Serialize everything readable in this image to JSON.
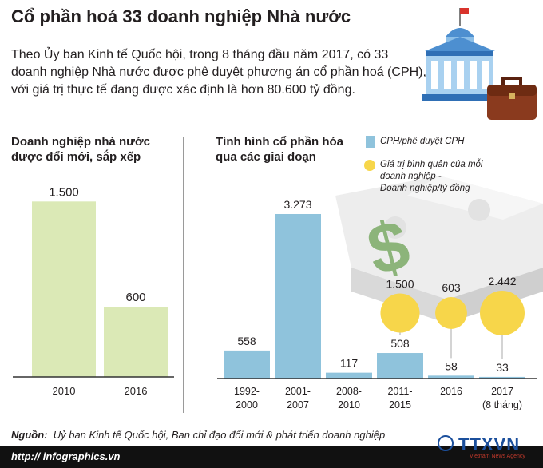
{
  "title": "Cổ phần hoá 33 doanh nghiệp Nhà nước",
  "intro": "Theo Ủy ban Kinh tế Quốc hội, trong 8 tháng đầu năm 2017, có 33 doanh nghiệp Nhà nước được phê duyệt phương án cổ phần hoá (CPH), với giá trị thực tế đang được xác định là hơn 80.600 tỷ đồng.",
  "left_panel": {
    "title_line1": "Doanh nghiệp nhà nước",
    "title_line2": "được đổi mới, sắp xếp"
  },
  "right_panel": {
    "title_line1": "Tình hình cổ phần hóa",
    "title_line2": "qua các giai đoạn"
  },
  "legend": {
    "bars": "CPH/phê duyệt CPH",
    "circles_line1": "Giá trị bình quân của mỗi",
    "circles_line2": "doanh nghiệp -",
    "circles_line3": "Doanh nghiệp/tỷ đồng"
  },
  "footer": {
    "source_label": "Nguồn:",
    "source_text": "Uỷ ban Kinh tế Quốc hội, Ban chỉ đạo đổi mới & phát triển doanh nghiệp",
    "url": "http:// infographics.vn",
    "logo": "TTXVN",
    "logo_sub": "Vietnam News Agency"
  },
  "colors": {
    "left_bar": "#dbe9b6",
    "right_bar": "#8fc3dc",
    "circle": "#f7d64a",
    "circle_stroke": "#a8a8a8",
    "roof": "#4d8fd0"
  },
  "chart_data": [
    {
      "type": "bar",
      "title": "Doanh nghiệp nhà nước được đổi mới, sắp xếp",
      "categories": [
        "2010",
        "2016"
      ],
      "values": [
        1500,
        600
      ],
      "value_labels": [
        "1.500",
        "600"
      ],
      "ylim": [
        0,
        1550
      ],
      "grid": false
    },
    {
      "type": "bar",
      "title": "Tình hình cổ phần hóa qua các giai đoạn",
      "categories": [
        [
          "1992-",
          "2000"
        ],
        [
          "2001-",
          "2007"
        ],
        [
          "2008-",
          "2010"
        ],
        [
          "2011-",
          "2015"
        ],
        [
          "2016"
        ],
        [
          "2017",
          "(8 tháng)"
        ]
      ],
      "series": [
        {
          "name": "CPH/phê duyệt CPH",
          "values": [
            558,
            3273,
            117,
            508,
            58,
            33
          ],
          "value_labels": [
            "558",
            "3.273",
            "117",
            "508",
            "58",
            "33"
          ]
        },
        {
          "name": "Giá trị bình quân của mỗi doanh nghiệp - Doanh nghiệp/tỷ đồng",
          "values": [
            null,
            null,
            null,
            1500,
            603,
            2442
          ],
          "value_labels": [
            "",
            "",
            "",
            "1.500",
            "603",
            "2.442"
          ]
        }
      ],
      "ylim": [
        0,
        3400
      ],
      "grid": false,
      "legend_position": "top-right"
    }
  ]
}
